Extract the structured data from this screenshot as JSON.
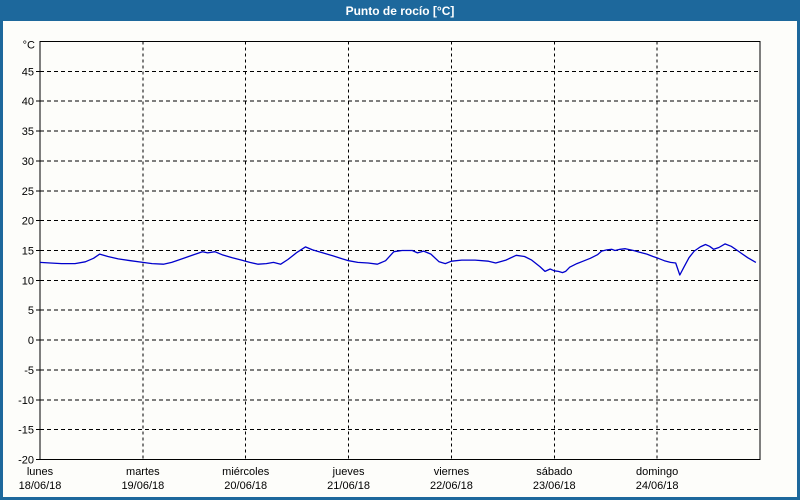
{
  "window": {
    "title": "Punto de rocío [°C]"
  },
  "colors": {
    "accent": "#1d689c",
    "title_text": "#ffffff",
    "background": "#fdfdfa",
    "plot_border": "#000000",
    "grid": "#000000",
    "label": "#000000",
    "line": "#0000cc"
  },
  "chart_data": {
    "type": "line",
    "title": "Punto de rocío [°C]",
    "unit_label": "°C",
    "ylabel": "°C",
    "ylim": [
      -20,
      50
    ],
    "yticks": [
      45,
      40,
      35,
      30,
      25,
      20,
      15,
      10,
      5,
      0,
      -5,
      -10,
      -15,
      -20
    ],
    "xlim_days": [
      0,
      7
    ],
    "grid": "dashed",
    "legend_position": "none",
    "x_axis": {
      "days": [
        {
          "name": "lunes",
          "date": "18/06/18"
        },
        {
          "name": "martes",
          "date": "19/06/18"
        },
        {
          "name": "miércoles",
          "date": "20/06/18"
        },
        {
          "name": "jueves",
          "date": "21/06/18"
        },
        {
          "name": "viernes",
          "date": "22/06/18"
        },
        {
          "name": "sábado",
          "date": "23/06/18"
        },
        {
          "name": "domingo",
          "date": "24/06/18"
        }
      ]
    },
    "series": [
      {
        "name": "Punto de rocío",
        "color": "#0000cc",
        "points": [
          [
            0.0,
            13.0
          ],
          [
            0.1,
            12.9
          ],
          [
            0.21,
            12.8
          ],
          [
            0.34,
            12.8
          ],
          [
            0.44,
            13.1
          ],
          [
            0.52,
            13.7
          ],
          [
            0.58,
            14.4
          ],
          [
            0.66,
            14.0
          ],
          [
            0.76,
            13.6
          ],
          [
            0.88,
            13.3
          ],
          [
            1.0,
            13.0
          ],
          [
            1.09,
            12.8
          ],
          [
            1.2,
            12.7
          ],
          [
            1.28,
            13.0
          ],
          [
            1.38,
            13.6
          ],
          [
            1.48,
            14.2
          ],
          [
            1.58,
            14.8
          ],
          [
            1.63,
            14.6
          ],
          [
            1.7,
            14.8
          ],
          [
            1.77,
            14.3
          ],
          [
            1.87,
            13.8
          ],
          [
            1.96,
            13.4
          ],
          [
            2.04,
            13.0
          ],
          [
            2.12,
            12.7
          ],
          [
            2.2,
            12.8
          ],
          [
            2.27,
            13.0
          ],
          [
            2.34,
            12.7
          ],
          [
            2.41,
            13.5
          ],
          [
            2.5,
            14.7
          ],
          [
            2.58,
            15.6
          ],
          [
            2.65,
            15.1
          ],
          [
            2.75,
            14.6
          ],
          [
            2.85,
            14.1
          ],
          [
            2.94,
            13.6
          ],
          [
            3.0,
            13.3
          ],
          [
            3.09,
            13.0
          ],
          [
            3.19,
            12.9
          ],
          [
            3.28,
            12.7
          ],
          [
            3.36,
            13.3
          ],
          [
            3.44,
            14.8
          ],
          [
            3.52,
            15.0
          ],
          [
            3.62,
            15.0
          ],
          [
            3.67,
            14.6
          ],
          [
            3.73,
            14.9
          ],
          [
            3.8,
            14.4
          ],
          [
            3.88,
            13.1
          ],
          [
            3.94,
            12.8
          ],
          [
            4.0,
            13.2
          ],
          [
            4.1,
            13.4
          ],
          [
            4.23,
            13.4
          ],
          [
            4.36,
            13.2
          ],
          [
            4.43,
            12.9
          ],
          [
            4.53,
            13.4
          ],
          [
            4.63,
            14.2
          ],
          [
            4.71,
            14.0
          ],
          [
            4.78,
            13.4
          ],
          [
            4.86,
            12.3
          ],
          [
            4.91,
            11.5
          ],
          [
            4.96,
            11.9
          ],
          [
            5.0,
            11.6
          ],
          [
            5.04,
            11.5
          ],
          [
            5.08,
            11.3
          ],
          [
            5.11,
            11.5
          ],
          [
            5.15,
            12.2
          ],
          [
            5.22,
            12.8
          ],
          [
            5.28,
            13.2
          ],
          [
            5.35,
            13.7
          ],
          [
            5.42,
            14.3
          ],
          [
            5.46,
            14.9
          ],
          [
            5.51,
            15.1
          ],
          [
            5.56,
            15.2
          ],
          [
            5.59,
            15.0
          ],
          [
            5.64,
            15.2
          ],
          [
            5.69,
            15.3
          ],
          [
            5.77,
            15.0
          ],
          [
            5.83,
            14.7
          ],
          [
            5.9,
            14.4
          ],
          [
            5.96,
            14.0
          ],
          [
            6.01,
            13.7
          ],
          [
            6.07,
            13.3
          ],
          [
            6.13,
            13.0
          ],
          [
            6.18,
            12.9
          ],
          [
            6.22,
            10.9
          ],
          [
            6.26,
            12.2
          ],
          [
            6.31,
            13.8
          ],
          [
            6.36,
            14.9
          ],
          [
            6.42,
            15.6
          ],
          [
            6.47,
            16.0
          ],
          [
            6.51,
            15.7
          ],
          [
            6.55,
            15.2
          ],
          [
            6.6,
            15.5
          ],
          [
            6.66,
            16.1
          ],
          [
            6.72,
            15.7
          ],
          [
            6.78,
            15.0
          ],
          [
            6.83,
            14.4
          ],
          [
            6.88,
            13.8
          ],
          [
            6.92,
            13.4
          ],
          [
            6.96,
            13.0
          ]
        ]
      }
    ]
  }
}
